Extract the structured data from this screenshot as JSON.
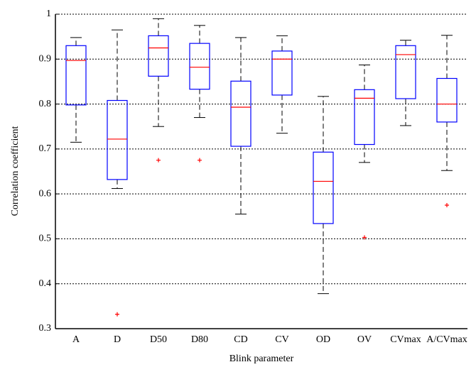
{
  "chart_data": {
    "type": "box",
    "xlabel": "Blink parameter",
    "ylabel": "Correlation coefficient",
    "categories": [
      "A",
      "D",
      "D50",
      "D80",
      "CD",
      "CV",
      "OD",
      "OV",
      "CVmax",
      "A/CVmax"
    ],
    "boxes": [
      {
        "min": 0.715,
        "q1": 0.798,
        "median": 0.897,
        "q3": 0.93,
        "max": 0.948,
        "outliers": []
      },
      {
        "min": 0.612,
        "q1": 0.632,
        "median": 0.722,
        "q3": 0.808,
        "max": 0.965,
        "outliers": [
          0.332
        ]
      },
      {
        "min": 0.75,
        "q1": 0.862,
        "median": 0.925,
        "q3": 0.952,
        "max": 0.99,
        "outliers": [
          0.675
        ]
      },
      {
        "min": 0.77,
        "q1": 0.833,
        "median": 0.882,
        "q3": 0.935,
        "max": 0.975,
        "outliers": [
          0.675
        ]
      },
      {
        "min": 0.555,
        "q1": 0.706,
        "median": 0.793,
        "q3": 0.851,
        "max": 0.948,
        "outliers": []
      },
      {
        "min": 0.735,
        "q1": 0.82,
        "median": 0.9,
        "q3": 0.918,
        "max": 0.952,
        "outliers": []
      },
      {
        "min": 0.378,
        "q1": 0.534,
        "median": 0.628,
        "q3": 0.693,
        "max": 0.817,
        "outliers": []
      },
      {
        "min": 0.67,
        "q1": 0.71,
        "median": 0.813,
        "q3": 0.832,
        "max": 0.887,
        "outliers": [
          0.503
        ]
      },
      {
        "min": 0.752,
        "q1": 0.812,
        "median": 0.91,
        "q3": 0.93,
        "max": 0.942,
        "outliers": []
      },
      {
        "min": 0.652,
        "q1": 0.76,
        "median": 0.8,
        "q3": 0.857,
        "max": 0.953,
        "outliers": [
          0.575
        ]
      }
    ],
    "box_color": "#0000ff",
    "median_color": "#ff0000",
    "whisker_color": "#000000",
    "outlier_color": "#ff0000",
    "ylim": [
      0.3,
      1
    ],
    "yticks": [
      0.3,
      0.4,
      0.5,
      0.6,
      0.7,
      0.8,
      0.9,
      1
    ],
    "grid": true
  }
}
